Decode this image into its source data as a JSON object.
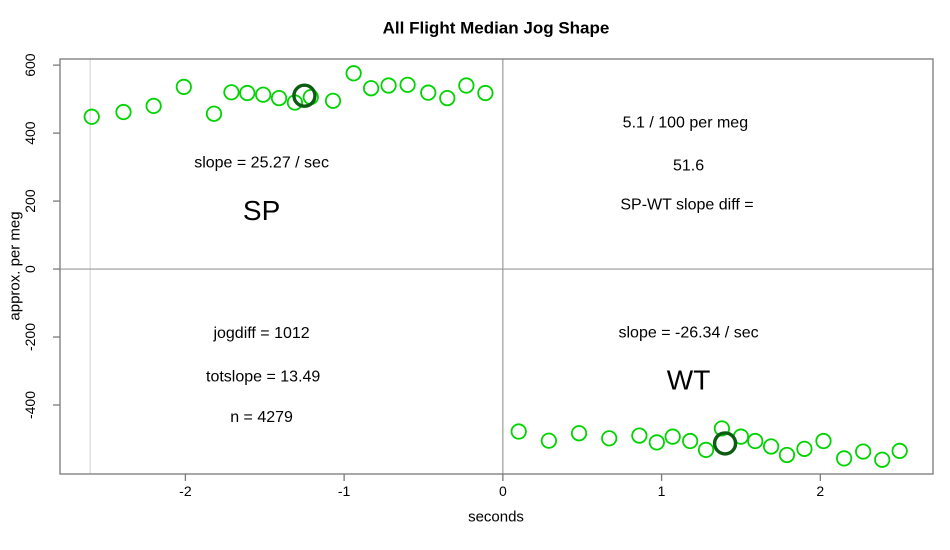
{
  "chart_data": {
    "type": "scatter",
    "title": "All Flight Median Jog Shape",
    "xlabel": "seconds",
    "ylabel": "approx. per meg",
    "xlim": [
      -2.79,
      2.71
    ],
    "ylim": [
      -603,
      618
    ],
    "x_ticks": [
      -2,
      -1,
      0,
      1,
      2
    ],
    "y_ticks": [
      -400,
      -200,
      0,
      200,
      400,
      600
    ],
    "grid": false,
    "legend": "none",
    "colors": {
      "axis": "#7a7a7a",
      "point_green": "#00D400",
      "highlight_dark_green": "#0C5C12",
      "zero_line_gray": "#9a9a9a",
      "secondary_line_light_gray": "#d8d8d8"
    },
    "reference_lines": {
      "vertical": [
        {
          "x": -2.6,
          "color": "#d8d8d8"
        },
        {
          "x": 0,
          "color": "#9a9a9a"
        }
      ],
      "horizontal": [
        {
          "y": 0,
          "color": "#9a9a9a"
        }
      ]
    },
    "series": [
      {
        "name": "SP",
        "marker": "open-circle",
        "color": "#00D400",
        "points": [
          [
            -2.59,
            448
          ],
          [
            -2.39,
            462
          ],
          [
            -2.2,
            480
          ],
          [
            -2.01,
            536
          ],
          [
            -1.82,
            457
          ],
          [
            -1.71,
            520
          ],
          [
            -1.61,
            518
          ],
          [
            -1.51,
            513
          ],
          [
            -1.41,
            503
          ],
          [
            -1.31,
            490
          ],
          [
            -1.21,
            506
          ],
          [
            -1.07,
            495
          ],
          [
            -0.94,
            576
          ],
          [
            -0.83,
            532
          ],
          [
            -0.72,
            540
          ],
          [
            -0.6,
            542
          ],
          [
            -0.47,
            519
          ],
          [
            -0.35,
            503
          ],
          [
            -0.23,
            540
          ],
          [
            -0.11,
            518
          ]
        ]
      },
      {
        "name": "WT",
        "marker": "open-circle",
        "color": "#00D400",
        "points": [
          [
            0.1,
            -478
          ],
          [
            0.29,
            -505
          ],
          [
            0.48,
            -483
          ],
          [
            0.67,
            -498
          ],
          [
            0.86,
            -490
          ],
          [
            0.97,
            -510
          ],
          [
            1.07,
            -493
          ],
          [
            1.18,
            -506
          ],
          [
            1.28,
            -532
          ],
          [
            1.38,
            -469
          ],
          [
            1.5,
            -493
          ],
          [
            1.59,
            -506
          ],
          [
            1.69,
            -522
          ],
          [
            1.79,
            -547
          ],
          [
            1.9,
            -529
          ],
          [
            2.02,
            -506
          ],
          [
            2.15,
            -557
          ],
          [
            2.27,
            -537
          ],
          [
            2.39,
            -561
          ],
          [
            2.5,
            -535
          ]
        ]
      }
    ],
    "highlighted_points": [
      {
        "series": "SP",
        "x": -1.25,
        "y": 510,
        "marker": "bold-open-circle",
        "color": "#0C5C12"
      },
      {
        "series": "WT",
        "x": 1.4,
        "y": -513,
        "marker": "bold-open-circle",
        "color": "#0C5C12"
      }
    ],
    "annotations": [
      {
        "id": "sp-slope",
        "text": "slope = 25.27 / sec",
        "x": -1.52,
        "y": 312,
        "style": "normal"
      },
      {
        "id": "sp-label",
        "text": "SP",
        "x": -1.52,
        "y": 172,
        "style": "large"
      },
      {
        "id": "diff-per-meg",
        "text": "5.1 / 100 per meg",
        "x": 1.15,
        "y": 430,
        "style": "normal"
      },
      {
        "id": "diff-value",
        "text": "51.6",
        "x": 1.17,
        "y": 303,
        "style": "normal"
      },
      {
        "id": "diff-label",
        "text": "SP-WT slope diff =",
        "x": 1.16,
        "y": 189,
        "style": "normal"
      },
      {
        "id": "jogdiff",
        "text": "jogdiff = 1012",
        "x": -1.52,
        "y": -190,
        "style": "normal"
      },
      {
        "id": "totslope",
        "text": "totslope = 13.49",
        "x": -1.51,
        "y": -317,
        "style": "normal"
      },
      {
        "id": "n-count",
        "text": "n = 4279",
        "x": -1.52,
        "y": -437,
        "style": "normal"
      },
      {
        "id": "wt-slope",
        "text": "slope = -26.34 / sec",
        "x": 1.17,
        "y": -188,
        "style": "normal"
      },
      {
        "id": "wt-label",
        "text": "WT",
        "x": 1.17,
        "y": -326,
        "style": "large"
      }
    ]
  }
}
